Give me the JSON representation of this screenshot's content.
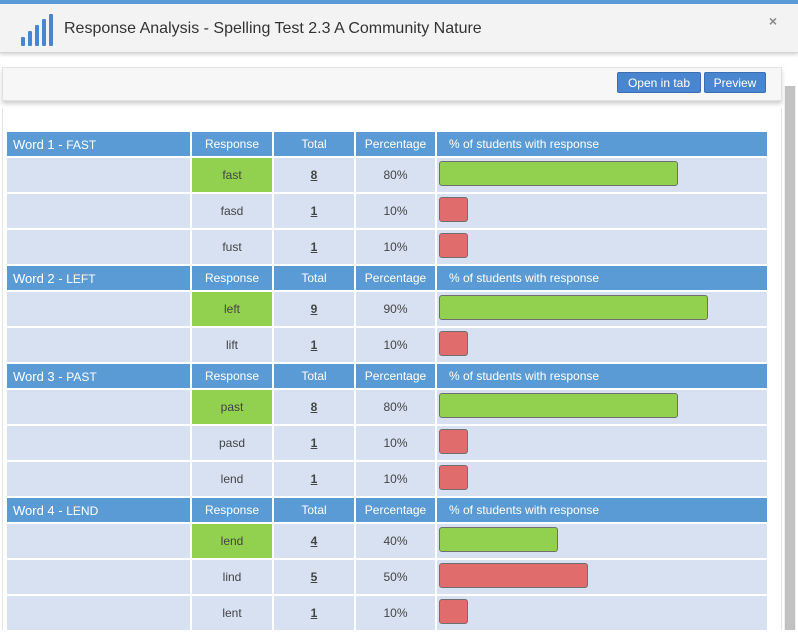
{
  "header": {
    "title": "Response Analysis - Spelling Test 2.3 A Community Nature",
    "close_icon": "×"
  },
  "toolbar": {
    "open_in_tab_label": "Open in tab",
    "preview_label": "Preview"
  },
  "colors": {
    "header_blue": "#5b9bd5",
    "row_bg": "#d7e1f1",
    "correct_green": "#92d050",
    "incorrect_red": "#e06c6c",
    "button_blue": "#4a86d0"
  },
  "columns": {
    "response": "Response",
    "total": "Total",
    "percentage": "Percentage",
    "students": "% of students with response"
  },
  "words": [
    {
      "label": "Word 1 - ",
      "word": "FAST",
      "responses": [
        {
          "response": "fast",
          "total": "8",
          "percentage": "80%",
          "pct_value": 80,
          "correct": true
        },
        {
          "response": "fasd",
          "total": "1",
          "percentage": "10%",
          "pct_value": 10,
          "correct": false
        },
        {
          "response": "fust",
          "total": "1",
          "percentage": "10%",
          "pct_value": 10,
          "correct": false
        }
      ]
    },
    {
      "label": "Word 2 - ",
      "word": "LEFT",
      "responses": [
        {
          "response": "left",
          "total": "9",
          "percentage": "90%",
          "pct_value": 90,
          "correct": true
        },
        {
          "response": "lift",
          "total": "1",
          "percentage": "10%",
          "pct_value": 10,
          "correct": false
        }
      ]
    },
    {
      "label": "Word 3 - ",
      "word": "PAST",
      "responses": [
        {
          "response": "past",
          "total": "8",
          "percentage": "80%",
          "pct_value": 80,
          "correct": true
        },
        {
          "response": "pasd",
          "total": "1",
          "percentage": "10%",
          "pct_value": 10,
          "correct": false
        },
        {
          "response": "lend",
          "total": "1",
          "percentage": "10%",
          "pct_value": 10,
          "correct": false
        }
      ]
    },
    {
      "label": "Word 4 - ",
      "word": "LEND",
      "responses": [
        {
          "response": "lend",
          "total": "4",
          "percentage": "40%",
          "pct_value": 40,
          "correct": true
        },
        {
          "response": "lind",
          "total": "5",
          "percentage": "50%",
          "pct_value": 50,
          "correct": false
        },
        {
          "response": "lent",
          "total": "1",
          "percentage": "10%",
          "pct_value": 10,
          "correct": false
        }
      ]
    }
  ]
}
